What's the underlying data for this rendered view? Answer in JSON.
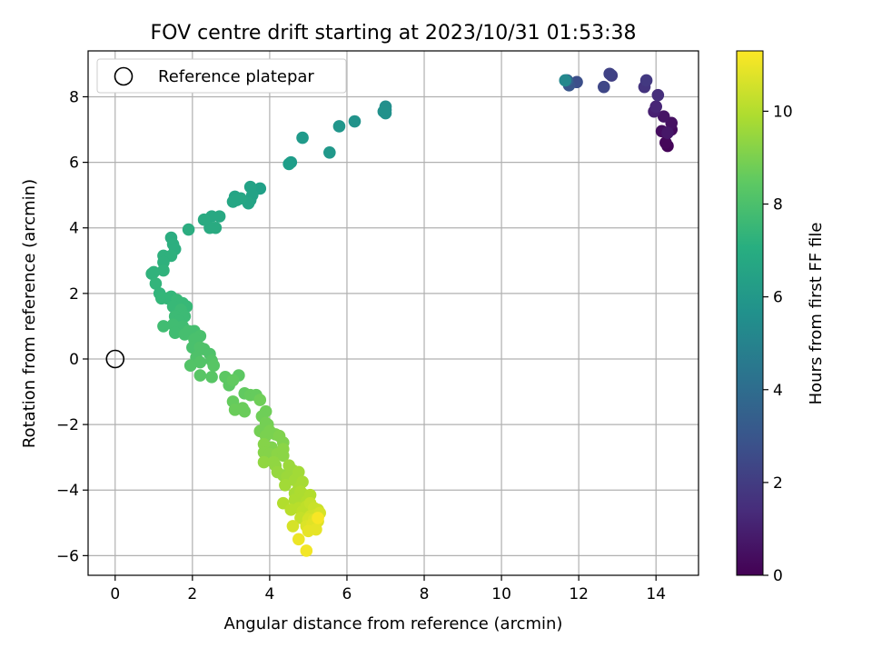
{
  "chart_data": {
    "type": "scatter",
    "title": "FOV centre drift starting at 2023/10/31 01:53:38",
    "xlabel": "Angular distance from reference (arcmin)",
    "ylabel": "Rotation from reference (arcmin)",
    "xlim": [
      -0.7,
      15.1
    ],
    "ylim": [
      -6.6,
      9.4
    ],
    "x_ticks": [
      0,
      2,
      4,
      6,
      8,
      10,
      12,
      14
    ],
    "y_ticks": [
      -6,
      -4,
      -2,
      0,
      2,
      4,
      6,
      8
    ],
    "grid": true,
    "legend": {
      "position": "top-left",
      "entries": [
        "Reference platepar"
      ]
    },
    "colorbar": {
      "label": "Hours from first FF file",
      "colormap": "viridis",
      "range": [
        0,
        11.3
      ],
      "ticks": [
        0,
        2,
        4,
        6,
        8,
        10
      ]
    },
    "reference_point": {
      "x": 0,
      "y": 0
    },
    "points": [
      {
        "x": 14.3,
        "y": 6.5,
        "c": 0.1
      },
      {
        "x": 14.25,
        "y": 6.6,
        "c": 0.2
      },
      {
        "x": 14.4,
        "y": 7.0,
        "c": 0.3
      },
      {
        "x": 14.15,
        "y": 6.95,
        "c": 0.4
      },
      {
        "x": 14.4,
        "y": 7.2,
        "c": 0.5
      },
      {
        "x": 14.2,
        "y": 7.4,
        "c": 0.6
      },
      {
        "x": 14.3,
        "y": 6.9,
        "c": 0.7
      },
      {
        "x": 13.95,
        "y": 7.55,
        "c": 1.0
      },
      {
        "x": 14.0,
        "y": 7.7,
        "c": 1.2
      },
      {
        "x": 14.05,
        "y": 8.05,
        "c": 1.5
      },
      {
        "x": 13.7,
        "y": 8.3,
        "c": 1.7
      },
      {
        "x": 13.75,
        "y": 8.5,
        "c": 1.9
      },
      {
        "x": 12.85,
        "y": 8.65,
        "c": 2.1
      },
      {
        "x": 12.8,
        "y": 8.7,
        "c": 2.2
      },
      {
        "x": 12.65,
        "y": 8.3,
        "c": 2.4
      },
      {
        "x": 11.95,
        "y": 8.45,
        "c": 2.7
      },
      {
        "x": 11.75,
        "y": 8.35,
        "c": 3.0
      },
      {
        "x": 11.7,
        "y": 8.5,
        "c": 3.5
      },
      {
        "x": 11.65,
        "y": 8.5,
        "c": 5.3
      },
      {
        "x": 7.0,
        "y": 7.6,
        "c": 5.5
      },
      {
        "x": 7.0,
        "y": 7.7,
        "c": 5.6
      },
      {
        "x": 7.0,
        "y": 7.5,
        "c": 5.7
      },
      {
        "x": 6.95,
        "y": 7.55,
        "c": 5.7
      },
      {
        "x": 6.2,
        "y": 7.25,
        "c": 5.8
      },
      {
        "x": 5.8,
        "y": 7.1,
        "c": 5.9
      },
      {
        "x": 5.55,
        "y": 6.3,
        "c": 6.0
      },
      {
        "x": 4.85,
        "y": 6.75,
        "c": 6.1
      },
      {
        "x": 4.55,
        "y": 6.0,
        "c": 6.2
      },
      {
        "x": 4.5,
        "y": 5.95,
        "c": 6.3
      },
      {
        "x": 3.75,
        "y": 5.2,
        "c": 6.4
      },
      {
        "x": 3.5,
        "y": 5.25,
        "c": 6.5
      },
      {
        "x": 3.5,
        "y": 4.85,
        "c": 6.5
      },
      {
        "x": 3.55,
        "y": 5.0,
        "c": 6.5
      },
      {
        "x": 3.45,
        "y": 4.75,
        "c": 6.6
      },
      {
        "x": 3.1,
        "y": 4.95,
        "c": 6.6
      },
      {
        "x": 3.05,
        "y": 4.8,
        "c": 6.7
      },
      {
        "x": 3.15,
        "y": 4.85,
        "c": 6.7
      },
      {
        "x": 3.25,
        "y": 4.9,
        "c": 6.7
      },
      {
        "x": 2.7,
        "y": 4.35,
        "c": 6.8
      },
      {
        "x": 2.5,
        "y": 4.35,
        "c": 6.8
      },
      {
        "x": 2.6,
        "y": 4.0,
        "c": 6.9
      },
      {
        "x": 2.45,
        "y": 4.0,
        "c": 6.9
      },
      {
        "x": 2.3,
        "y": 4.25,
        "c": 6.9
      },
      {
        "x": 1.9,
        "y": 3.95,
        "c": 7.0
      },
      {
        "x": 1.45,
        "y": 3.7,
        "c": 7.0
      },
      {
        "x": 1.5,
        "y": 3.5,
        "c": 7.1
      },
      {
        "x": 1.55,
        "y": 3.35,
        "c": 7.1
      },
      {
        "x": 1.25,
        "y": 3.15,
        "c": 7.2
      },
      {
        "x": 1.45,
        "y": 3.15,
        "c": 7.2
      },
      {
        "x": 1.25,
        "y": 2.95,
        "c": 7.2
      },
      {
        "x": 1.25,
        "y": 2.7,
        "c": 7.3
      },
      {
        "x": 0.95,
        "y": 2.6,
        "c": 7.3
      },
      {
        "x": 1.0,
        "y": 2.65,
        "c": 7.3
      },
      {
        "x": 1.05,
        "y": 2.3,
        "c": 7.4
      },
      {
        "x": 1.15,
        "y": 2.0,
        "c": 7.4
      },
      {
        "x": 1.2,
        "y": 1.85,
        "c": 7.5
      },
      {
        "x": 1.35,
        "y": 1.85,
        "c": 7.5
      },
      {
        "x": 1.45,
        "y": 1.9,
        "c": 7.5
      },
      {
        "x": 1.6,
        "y": 1.8,
        "c": 7.6
      },
      {
        "x": 1.75,
        "y": 1.7,
        "c": 7.6
      },
      {
        "x": 1.85,
        "y": 1.6,
        "c": 7.6
      },
      {
        "x": 1.5,
        "y": 1.6,
        "c": 7.6
      },
      {
        "x": 1.7,
        "y": 1.5,
        "c": 7.7
      },
      {
        "x": 1.55,
        "y": 1.3,
        "c": 7.7
      },
      {
        "x": 1.8,
        "y": 1.3,
        "c": 7.7
      },
      {
        "x": 1.65,
        "y": 1.15,
        "c": 7.7
      },
      {
        "x": 1.75,
        "y": 1.0,
        "c": 7.8
      },
      {
        "x": 1.5,
        "y": 1.05,
        "c": 7.8
      },
      {
        "x": 1.25,
        "y": 1.0,
        "c": 7.8
      },
      {
        "x": 1.55,
        "y": 0.8,
        "c": 7.8
      },
      {
        "x": 1.8,
        "y": 0.75,
        "c": 7.9
      },
      {
        "x": 1.9,
        "y": 0.85,
        "c": 7.9
      },
      {
        "x": 2.05,
        "y": 0.85,
        "c": 7.9
      },
      {
        "x": 2.2,
        "y": 0.7,
        "c": 8.0
      },
      {
        "x": 2.05,
        "y": 0.6,
        "c": 8.0
      },
      {
        "x": 2.0,
        "y": 0.35,
        "c": 8.0
      },
      {
        "x": 2.2,
        "y": 0.35,
        "c": 8.1
      },
      {
        "x": 2.3,
        "y": 0.3,
        "c": 8.1
      },
      {
        "x": 2.45,
        "y": 0.15,
        "c": 8.1
      },
      {
        "x": 2.1,
        "y": 0.05,
        "c": 8.1
      },
      {
        "x": 2.2,
        "y": -0.1,
        "c": 8.2
      },
      {
        "x": 1.95,
        "y": -0.2,
        "c": 8.2
      },
      {
        "x": 2.5,
        "y": -0.05,
        "c": 8.2
      },
      {
        "x": 2.55,
        "y": -0.2,
        "c": 8.3
      },
      {
        "x": 2.2,
        "y": -0.5,
        "c": 8.3
      },
      {
        "x": 2.5,
        "y": -0.55,
        "c": 8.3
      },
      {
        "x": 2.85,
        "y": -0.55,
        "c": 8.4
      },
      {
        "x": 2.95,
        "y": -0.8,
        "c": 8.4
      },
      {
        "x": 3.2,
        "y": -0.5,
        "c": 8.4
      },
      {
        "x": 3.05,
        "y": -0.65,
        "c": 8.5
      },
      {
        "x": 3.35,
        "y": -1.05,
        "c": 8.5
      },
      {
        "x": 3.5,
        "y": -1.1,
        "c": 8.6
      },
      {
        "x": 3.65,
        "y": -1.1,
        "c": 8.6
      },
      {
        "x": 3.05,
        "y": -1.3,
        "c": 8.6
      },
      {
        "x": 3.1,
        "y": -1.55,
        "c": 8.7
      },
      {
        "x": 3.3,
        "y": -1.5,
        "c": 8.7
      },
      {
        "x": 3.35,
        "y": -1.6,
        "c": 8.7
      },
      {
        "x": 3.75,
        "y": -1.25,
        "c": 8.8
      },
      {
        "x": 3.9,
        "y": -1.6,
        "c": 8.8
      },
      {
        "x": 3.8,
        "y": -1.75,
        "c": 8.8
      },
      {
        "x": 3.9,
        "y": -1.95,
        "c": 8.9
      },
      {
        "x": 3.95,
        "y": -2.0,
        "c": 8.9
      },
      {
        "x": 3.75,
        "y": -2.2,
        "c": 8.9
      },
      {
        "x": 3.9,
        "y": -2.35,
        "c": 9.0
      },
      {
        "x": 4.0,
        "y": -2.2,
        "c": 9.0
      },
      {
        "x": 4.15,
        "y": -2.3,
        "c": 9.0
      },
      {
        "x": 4.25,
        "y": -2.35,
        "c": 9.1
      },
      {
        "x": 4.35,
        "y": -2.55,
        "c": 9.1
      },
      {
        "x": 4.05,
        "y": -2.7,
        "c": 9.1
      },
      {
        "x": 3.85,
        "y": -2.6,
        "c": 9.2
      },
      {
        "x": 3.85,
        "y": -2.85,
        "c": 9.2
      },
      {
        "x": 4.0,
        "y": -2.9,
        "c": 9.2
      },
      {
        "x": 4.2,
        "y": -2.9,
        "c": 9.3
      },
      {
        "x": 4.35,
        "y": -2.75,
        "c": 9.3
      },
      {
        "x": 4.35,
        "y": -2.95,
        "c": 9.3
      },
      {
        "x": 3.85,
        "y": -3.15,
        "c": 9.4
      },
      {
        "x": 4.1,
        "y": -3.15,
        "c": 9.4
      },
      {
        "x": 4.15,
        "y": -3.25,
        "c": 9.4
      },
      {
        "x": 4.2,
        "y": -3.45,
        "c": 9.5
      },
      {
        "x": 4.35,
        "y": -3.55,
        "c": 9.5
      },
      {
        "x": 4.5,
        "y": -3.25,
        "c": 9.6
      },
      {
        "x": 4.6,
        "y": -3.4,
        "c": 9.6
      },
      {
        "x": 4.45,
        "y": -3.6,
        "c": 9.6
      },
      {
        "x": 4.4,
        "y": -3.85,
        "c": 9.7
      },
      {
        "x": 4.65,
        "y": -3.7,
        "c": 9.7
      },
      {
        "x": 4.75,
        "y": -3.45,
        "c": 9.7
      },
      {
        "x": 4.85,
        "y": -3.75,
        "c": 9.8
      },
      {
        "x": 4.75,
        "y": -3.95,
        "c": 9.8
      },
      {
        "x": 4.65,
        "y": -4.1,
        "c": 9.8
      },
      {
        "x": 4.65,
        "y": -4.3,
        "c": 9.9
      },
      {
        "x": 4.8,
        "y": -4.05,
        "c": 9.9
      },
      {
        "x": 4.9,
        "y": -4.15,
        "c": 9.9
      },
      {
        "x": 4.95,
        "y": -4.35,
        "c": 10.0
      },
      {
        "x": 5.05,
        "y": -4.15,
        "c": 10.0
      },
      {
        "x": 4.35,
        "y": -4.4,
        "c": 10.0
      },
      {
        "x": 4.55,
        "y": -4.6,
        "c": 10.1
      },
      {
        "x": 4.75,
        "y": -4.55,
        "c": 10.1
      },
      {
        "x": 4.85,
        "y": -4.65,
        "c": 10.2
      },
      {
        "x": 4.95,
        "y": -4.5,
        "c": 10.2
      },
      {
        "x": 4.8,
        "y": -4.85,
        "c": 10.3
      },
      {
        "x": 5.05,
        "y": -4.4,
        "c": 10.3
      },
      {
        "x": 5.15,
        "y": -4.55,
        "c": 10.4
      },
      {
        "x": 5.25,
        "y": -4.6,
        "c": 10.4
      },
      {
        "x": 5.05,
        "y": -4.8,
        "c": 10.5
      },
      {
        "x": 5.2,
        "y": -4.75,
        "c": 10.5
      },
      {
        "x": 5.3,
        "y": -4.7,
        "c": 10.6
      },
      {
        "x": 5.0,
        "y": -4.9,
        "c": 10.6
      },
      {
        "x": 5.15,
        "y": -4.9,
        "c": 10.7
      },
      {
        "x": 4.95,
        "y": -5.1,
        "c": 10.7
      },
      {
        "x": 5.1,
        "y": -5.05,
        "c": 10.8
      },
      {
        "x": 5.25,
        "y": -4.95,
        "c": 10.8
      },
      {
        "x": 4.6,
        "y": -5.1,
        "c": 10.6
      },
      {
        "x": 5.0,
        "y": -5.25,
        "c": 10.9
      },
      {
        "x": 5.2,
        "y": -5.2,
        "c": 10.9
      },
      {
        "x": 4.75,
        "y": -5.5,
        "c": 11.0
      },
      {
        "x": 4.95,
        "y": -5.85,
        "c": 11.1
      },
      {
        "x": 5.25,
        "y": -4.85,
        "c": 11.2
      }
    ]
  }
}
